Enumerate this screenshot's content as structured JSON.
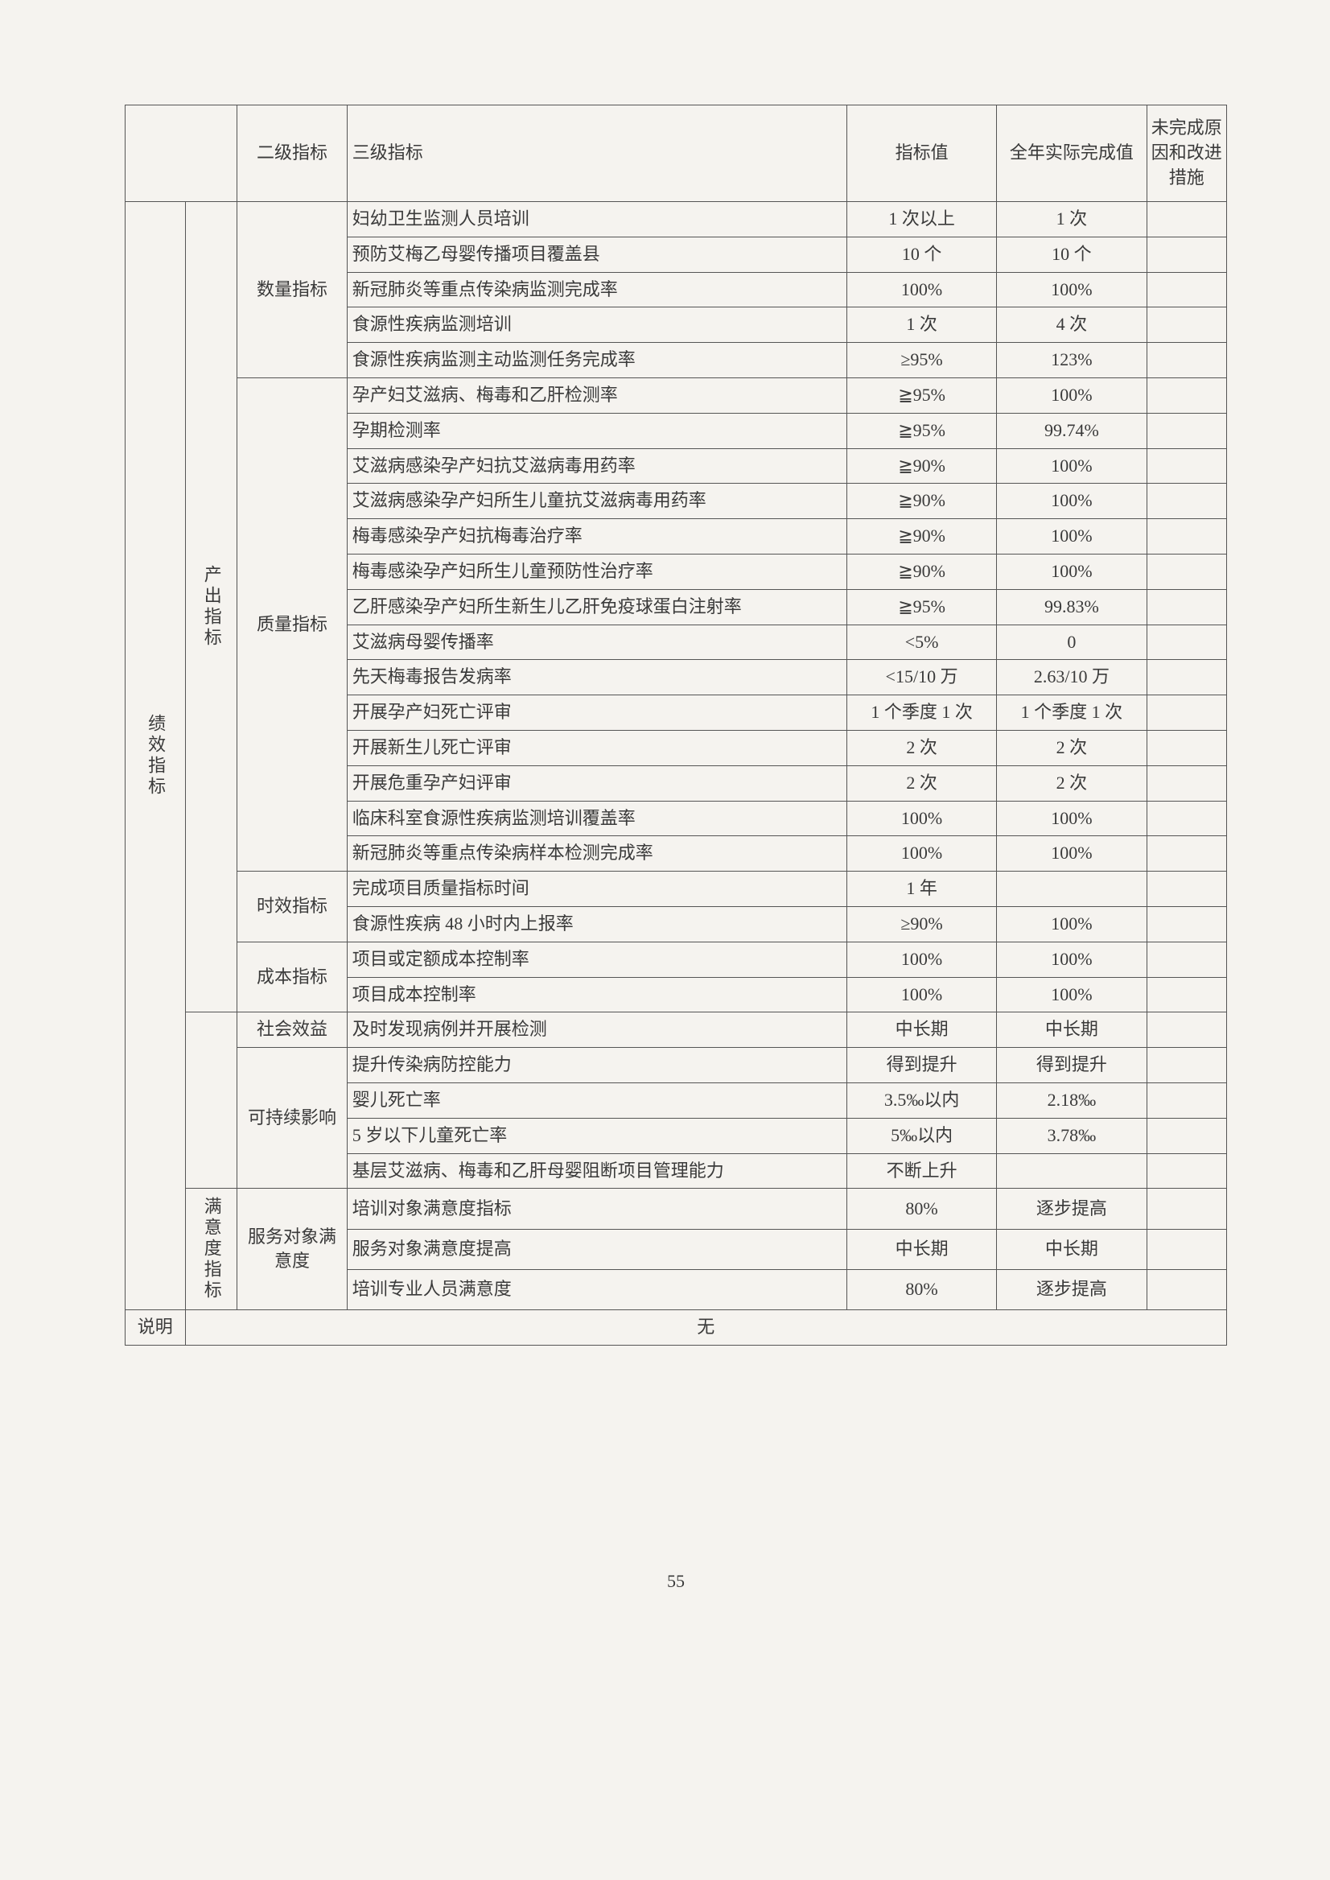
{
  "pageNumber": "55",
  "colors": {
    "background": "#f5f3ef",
    "border": "#555555",
    "text": "#3a3a3a"
  },
  "fontSize": 22,
  "header": {
    "level2": "二级指标",
    "level3": "三级指标",
    "target": "指标值",
    "actual": "全年实际完成值",
    "reason": "未完成原因和改进措施"
  },
  "cat1": {
    "label": "绩效指标",
    "groups": [
      {
        "label": "产出指标",
        "level2": [
          {
            "name": "数量指标",
            "rows": [
              {
                "l3": "妇幼卫生监测人员培训",
                "target": "1 次以上",
                "actual": "1 次"
              },
              {
                "l3": "预防艾梅乙母婴传播项目覆盖县",
                "target": "10 个",
                "actual": "10 个"
              },
              {
                "l3": "新冠肺炎等重点传染病监测完成率",
                "target": "100%",
                "actual": "100%"
              },
              {
                "l3": "食源性疾病监测培训",
                "target": "1 次",
                "actual": "4 次"
              },
              {
                "l3": "食源性疾病监测主动监测任务完成率",
                "target": "≥95%",
                "actual": "123%"
              }
            ]
          },
          {
            "name": "质量指标",
            "rows": [
              {
                "l3": "孕产妇艾滋病、梅毒和乙肝检测率",
                "target": "≧95%",
                "actual": "100%"
              },
              {
                "l3": "孕期检测率",
                "target": "≧95%",
                "actual": "99.74%"
              },
              {
                "l3": "艾滋病感染孕产妇抗艾滋病毒用药率",
                "target": "≧90%",
                "actual": "100%"
              },
              {
                "l3": "艾滋病感染孕产妇所生儿童抗艾滋病毒用药率",
                "target": "≧90%",
                "actual": "100%"
              },
              {
                "l3": "梅毒感染孕产妇抗梅毒治疗率",
                "target": "≧90%",
                "actual": "100%"
              },
              {
                "l3": "梅毒感染孕产妇所生儿童预防性治疗率",
                "target": "≧90%",
                "actual": "100%"
              },
              {
                "l3": "乙肝感染孕产妇所生新生儿乙肝免疫球蛋白注射率",
                "target": "≧95%",
                "actual": "99.83%"
              },
              {
                "l3": "艾滋病母婴传播率",
                "target": "<5%",
                "actual": "0"
              },
              {
                "l3": "先天梅毒报告发病率",
                "target": "<15/10 万",
                "actual": "2.63/10 万"
              },
              {
                "l3": "开展孕产妇死亡评审",
                "target": "1 个季度 1 次",
                "actual": "1 个季度 1 次"
              },
              {
                "l3": "开展新生儿死亡评审",
                "target": "2 次",
                "actual": "2 次"
              },
              {
                "l3": "开展危重孕产妇评审",
                "target": "2 次",
                "actual": "2 次"
              },
              {
                "l3": "临床科室食源性疾病监测培训覆盖率",
                "target": "100%",
                "actual": "100%"
              },
              {
                "l3": "新冠肺炎等重点传染病样本检测完成率",
                "target": "100%",
                "actual": "100%"
              }
            ]
          },
          {
            "name": "时效指标",
            "rows": [
              {
                "l3": "完成项目质量指标时间",
                "target": "1 年",
                "actual": ""
              },
              {
                "l3": "食源性疾病 48 小时内上报率",
                "target": "≥90%",
                "actual": "100%"
              }
            ]
          },
          {
            "name": "成本指标",
            "rows": [
              {
                "l3": "项目或定额成本控制率",
                "target": "100%",
                "actual": "100%"
              },
              {
                "l3": "项目成本控制率",
                "target": "100%",
                "actual": "100%"
              }
            ]
          }
        ]
      },
      {
        "label": "",
        "level2": [
          {
            "name": "社会效益",
            "rows": [
              {
                "l3": "及时发现病例并开展检测",
                "target": "中长期",
                "actual": "中长期"
              }
            ]
          },
          {
            "name": "可持续影响",
            "rows": [
              {
                "l3": "提升传染病防控能力",
                "target": "得到提升",
                "actual": "得到提升"
              },
              {
                "l3": "婴儿死亡率",
                "target": "3.5‰以内",
                "actual": "2.18‰"
              },
              {
                "l3": "5 岁以下儿童死亡率",
                "target": "5‰以内",
                "actual": "3.78‰"
              },
              {
                "l3": "基层艾滋病、梅毒和乙肝母婴阻断项目管理能力",
                "target": "不断上升",
                "actual": ""
              }
            ]
          }
        ]
      },
      {
        "label": "满意度指标",
        "level2": [
          {
            "name": "服务对象满意度",
            "rows": [
              {
                "l3": "培训对象满意度指标",
                "target": "80%",
                "actual": "逐步提高"
              },
              {
                "l3": "服务对象满意度提高",
                "target": "中长期",
                "actual": "中长期"
              },
              {
                "l3": "培训专业人员满意度",
                "target": "80%",
                "actual": "逐步提高"
              }
            ]
          }
        ]
      }
    ]
  },
  "footer": {
    "label": "说明",
    "value": "无"
  }
}
